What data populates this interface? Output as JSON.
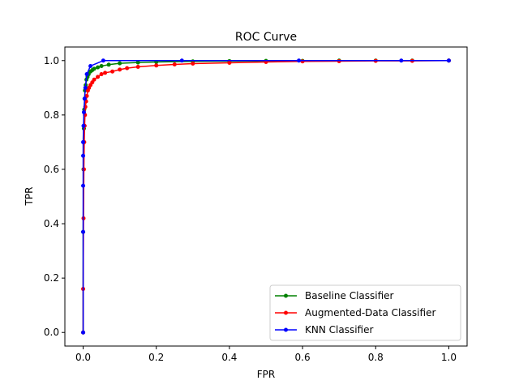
{
  "chart_data": {
    "type": "line",
    "title": "ROC Curve",
    "xlabel": "FPR",
    "ylabel": "TPR",
    "xlim": [
      -0.05,
      1.05
    ],
    "ylim": [
      -0.05,
      1.05
    ],
    "xticks": [
      "0.0",
      "0.2",
      "0.4",
      "0.6",
      "0.8",
      "1.0"
    ],
    "yticks": [
      "0.0",
      "0.2",
      "0.4",
      "0.6",
      "0.8",
      "1.0"
    ],
    "grid": false,
    "legend_position": "lower-right",
    "series": [
      {
        "name": "Baseline Classifier",
        "color": "#008000",
        "x": [
          0,
          0,
          0.001,
          0.002,
          0.003,
          0.004,
          0.005,
          0.007,
          0.009,
          0.012,
          0.015,
          0.02,
          0.025,
          0.03,
          0.04,
          0.05,
          0.07,
          0.1,
          0.15,
          0.2,
          0.3,
          0.4,
          0.5,
          0.6,
          0.7,
          0.8,
          0.9,
          1.0
        ],
        "y": [
          0,
          0.37,
          0.6,
          0.75,
          0.82,
          0.86,
          0.89,
          0.91,
          0.93,
          0.94,
          0.95,
          0.96,
          0.965,
          0.97,
          0.975,
          0.98,
          0.985,
          0.99,
          0.993,
          0.995,
          0.997,
          0.998,
          0.999,
          0.999,
          1.0,
          1.0,
          1.0,
          1.0
        ]
      },
      {
        "name": "Augmented-Data Classifier",
        "color": "#ff0000",
        "x": [
          0,
          0,
          0.001,
          0.002,
          0.003,
          0.004,
          0.005,
          0.006,
          0.008,
          0.01,
          0.013,
          0.016,
          0.02,
          0.025,
          0.03,
          0.04,
          0.05,
          0.06,
          0.08,
          0.1,
          0.12,
          0.15,
          0.2,
          0.25,
          0.3,
          0.4,
          0.5,
          0.6,
          0.7,
          0.8,
          0.9,
          1.0
        ],
        "y": [
          0,
          0.16,
          0.42,
          0.6,
          0.7,
          0.76,
          0.8,
          0.83,
          0.85,
          0.87,
          0.89,
          0.9,
          0.91,
          0.92,
          0.93,
          0.94,
          0.95,
          0.955,
          0.96,
          0.967,
          0.972,
          0.977,
          0.982,
          0.986,
          0.989,
          0.992,
          0.995,
          0.997,
          0.998,
          0.999,
          0.999,
          1.0
        ]
      },
      {
        "name": "KNN Classifier",
        "color": "#0000ff",
        "x": [
          0,
          0,
          0,
          0,
          0,
          0.001,
          0.002,
          0.004,
          0.006,
          0.01,
          0.02,
          0.055,
          0.27,
          0.59,
          0.87,
          1.0
        ],
        "y": [
          0,
          0.37,
          0.54,
          0.65,
          0.7,
          0.76,
          0.81,
          0.86,
          0.9,
          0.95,
          0.98,
          1.0,
          1.0,
          1.0,
          1.0,
          1.0
        ]
      }
    ]
  }
}
